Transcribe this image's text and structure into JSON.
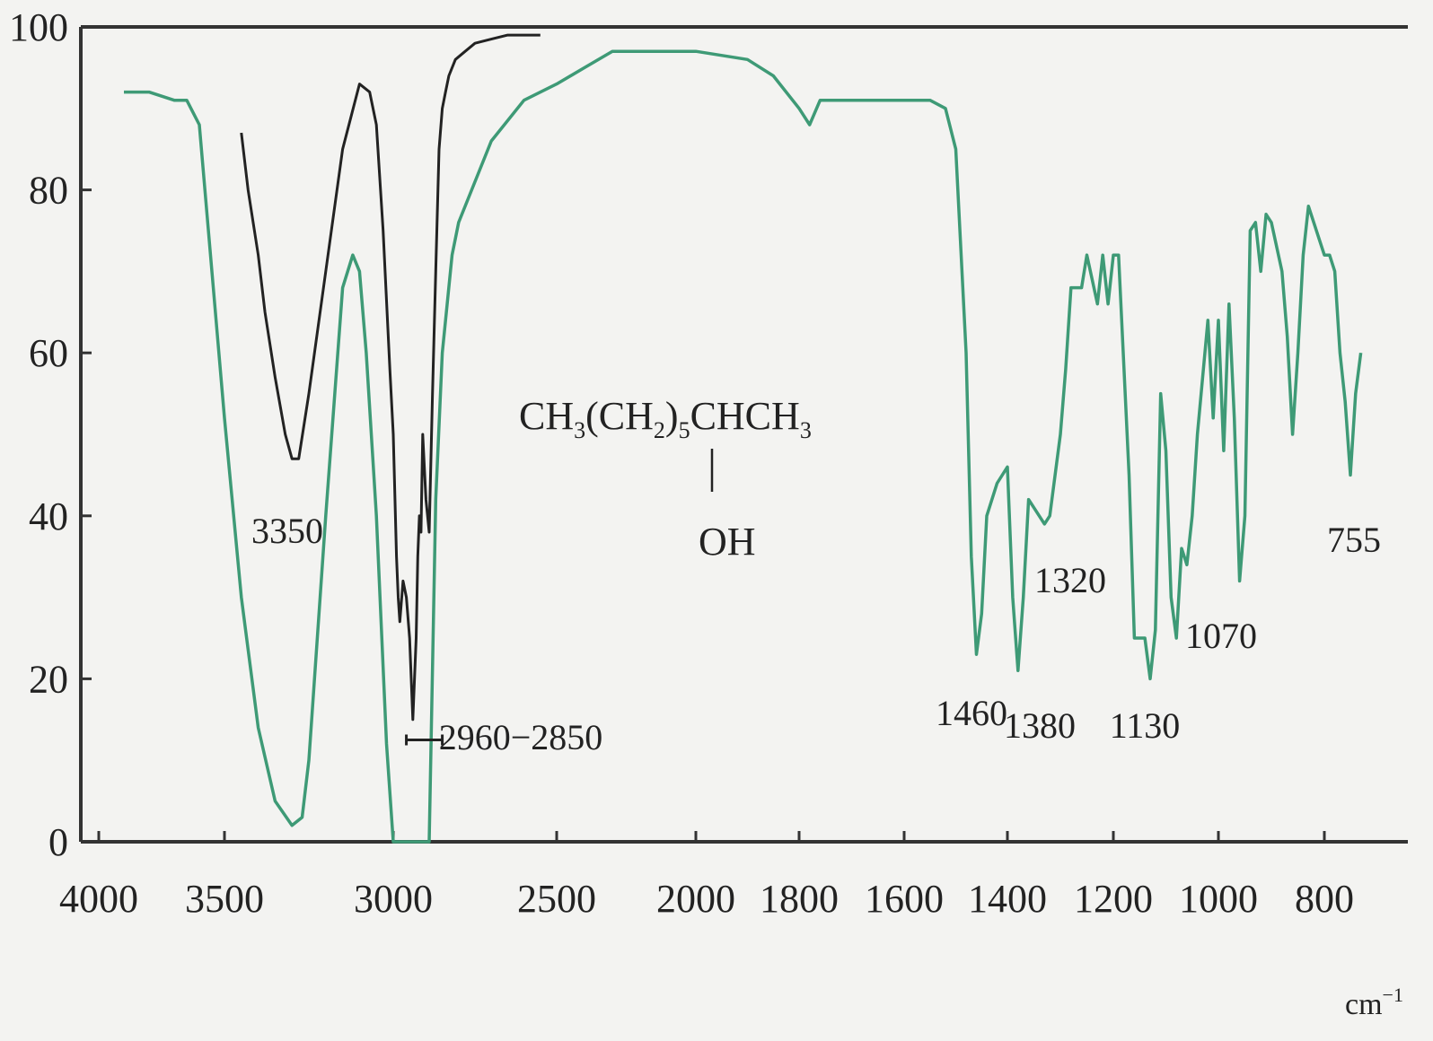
{
  "chart_data": {
    "type": "line",
    "xlabel": "",
    "ylabel": "",
    "x_unit": "cm⁻¹",
    "ylim": [
      0,
      100
    ],
    "x_ticks": [
      4000,
      3500,
      3000,
      2500,
      2000,
      1800,
      1600,
      1400,
      1200,
      1000,
      800
    ],
    "y_ticks": [
      0,
      20,
      40,
      60,
      80,
      100
    ],
    "x_tick_labels": [
      "4000",
      "3500",
      "3000",
      "2500",
      "2000",
      "1800",
      "1600",
      "1400",
      "1200",
      "1000",
      "800"
    ],
    "y_tick_labels": [
      "0",
      "20",
      "40",
      "60",
      "80",
      "100"
    ],
    "unit_label": "cm",
    "unit_sup": "−1",
    "formula": {
      "main": [
        "CH",
        "3",
        "(CH",
        "2",
        ")",
        "5",
        "CHCH",
        "3"
      ],
      "substituent": "OH"
    },
    "peak_labels": [
      {
        "text": "3350",
        "x": 3350
      },
      {
        "text": "2960−2850",
        "x": 2905
      },
      {
        "text": "1460",
        "x": 1460
      },
      {
        "text": "1380",
        "x": 1380
      },
      {
        "text": "1320",
        "x": 1320
      },
      {
        "text": "1130",
        "x": 1130
      },
      {
        "text": "1070",
        "x": 1070
      },
      {
        "text": "755",
        "x": 755
      }
    ],
    "series": [
      {
        "color": "#3e9a76",
        "x": [
          3900,
          3800,
          3700,
          3650,
          3600,
          3550,
          3500,
          3450,
          3400,
          3350,
          3300,
          3270,
          3250,
          3200,
          3150,
          3120,
          3100,
          3080,
          3050,
          3020,
          3000,
          2990,
          2970,
          2950,
          2930,
          2910,
          2890,
          2870,
          2850,
          2820,
          2800,
          2700,
          2600,
          2500,
          2400,
          2300,
          2200,
          2100,
          2000,
          1900,
          1850,
          1800,
          1780,
          1760,
          1740,
          1720,
          1700,
          1650,
          1600,
          1550,
          1520,
          1500,
          1480,
          1470,
          1460,
          1450,
          1440,
          1420,
          1400,
          1390,
          1380,
          1370,
          1360,
          1350,
          1330,
          1320,
          1300,
          1290,
          1280,
          1260,
          1250,
          1230,
          1220,
          1210,
          1200,
          1190,
          1170,
          1160,
          1140,
          1130,
          1120,
          1110,
          1100,
          1090,
          1080,
          1070,
          1060,
          1050,
          1040,
          1020,
          1010,
          1000,
          990,
          980,
          970,
          960,
          950,
          940,
          930,
          920,
          910,
          900,
          880,
          870,
          860,
          850,
          840,
          830,
          820,
          810,
          800,
          790,
          780,
          770,
          760,
          750,
          740,
          730
        ],
        "y": [
          92,
          92,
          91,
          91,
          88,
          70,
          52,
          30,
          14,
          5,
          2,
          3,
          10,
          40,
          68,
          72,
          70,
          60,
          40,
          12,
          0,
          0,
          0,
          0,
          0,
          0,
          0,
          42,
          60,
          72,
          76,
          86,
          91,
          93,
          95,
          97,
          97,
          97,
          97,
          96,
          94,
          90,
          88,
          91,
          91,
          91,
          91,
          91,
          91,
          91,
          90,
          85,
          60,
          35,
          23,
          28,
          40,
          44,
          46,
          30,
          21,
          30,
          42,
          41,
          39,
          40,
          50,
          58,
          68,
          68,
          72,
          66,
          72,
          66,
          72,
          72,
          45,
          25,
          25,
          20,
          26,
          55,
          48,
          30,
          25,
          36,
          34,
          40,
          50,
          64,
          52,
          64,
          48,
          66,
          52,
          32,
          40,
          75,
          76,
          70,
          77,
          76,
          70,
          62,
          50,
          60,
          72,
          78,
          76,
          74,
          72,
          72,
          70,
          60,
          54,
          45,
          55,
          60
        ]
      },
      {
        "color": "#222222",
        "x": [
          3450,
          3430,
          3400,
          3380,
          3350,
          3320,
          3300,
          3280,
          3250,
          3200,
          3150,
          3100,
          3070,
          3050,
          3030,
          3010,
          3000,
          2990,
          2985,
          2980,
          2970,
          2960,
          2950,
          2945,
          2940,
          2930,
          2925,
          2920,
          2915,
          2910,
          2900,
          2890,
          2880,
          2870,
          2860,
          2850,
          2840,
          2830,
          2810,
          2780,
          2750,
          2700,
          2650,
          2600,
          2550
        ],
        "y": [
          87,
          80,
          72,
          65,
          57,
          50,
          47,
          47,
          55,
          70,
          85,
          93,
          92,
          88,
          75,
          58,
          50,
          35,
          30,
          27,
          32,
          30,
          25,
          20,
          15,
          25,
          35,
          40,
          38,
          50,
          42,
          38,
          55,
          70,
          85,
          90,
          92,
          94,
          96,
          97,
          98,
          98.5,
          99,
          99,
          99
        ]
      }
    ]
  }
}
